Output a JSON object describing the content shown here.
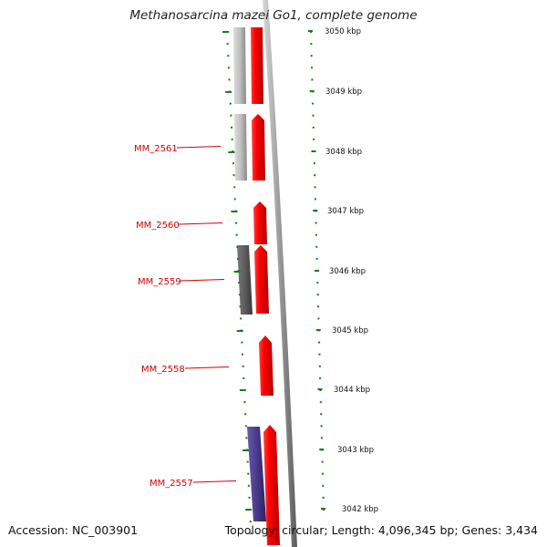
{
  "title": "Methanosarcina mazei Go1, complete genome",
  "footer": {
    "accession": "Accession: NC_003901",
    "summary": "Topology: circular; Length: 4,096,345 bp; Genes: 3,434"
  },
  "colors": {
    "gene_red": "#ff0000",
    "gene_gray": "#b4b4b4",
    "gene_dark": "#555555",
    "gene_blue": "#4a3a8a",
    "label_red": "#d40000",
    "tick_green": "#1a7a1a",
    "backbone": "#909090"
  },
  "ruler": [
    {
      "label": "3050 kbp"
    },
    {
      "label": "3049 kbp"
    },
    {
      "label": "3048 kbp"
    },
    {
      "label": "3047 kbp"
    },
    {
      "label": "3046 kbp"
    },
    {
      "label": "3045 kbp"
    },
    {
      "label": "3044 kbp"
    },
    {
      "label": "3043 kbp"
    },
    {
      "label": "3042 kbp"
    }
  ],
  "gene_labels": [
    "MM_2561",
    "MM_2560",
    "MM_2559",
    "MM_2558",
    "MM_2557"
  ]
}
